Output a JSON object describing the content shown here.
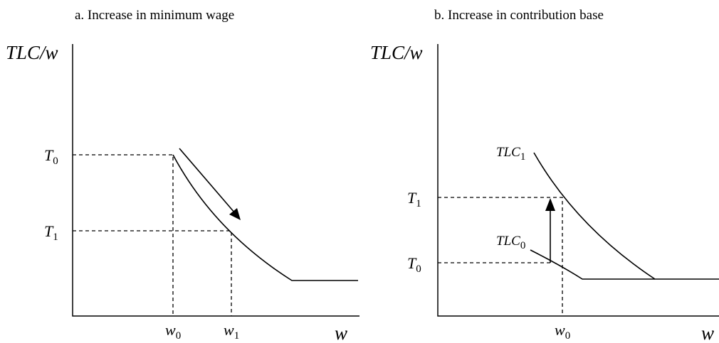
{
  "panels": [
    {
      "title": "a. Increase in minimum wage",
      "y_label": "TLC/w",
      "x_label": "w",
      "y_labels": [
        {
          "base": "T",
          "sub": "0"
        },
        {
          "base": "T",
          "sub": "1"
        }
      ],
      "x_labels": [
        {
          "base": "w",
          "sub": "0"
        },
        {
          "base": "w",
          "sub": "1"
        }
      ]
    },
    {
      "title": "b. Increase in contribution base",
      "y_label": "TLC/w",
      "x_label": "w",
      "y_labels": [
        {
          "base": "T",
          "sub": "1"
        },
        {
          "base": "T",
          "sub": "0"
        }
      ],
      "x_labels": [
        {
          "base": "w",
          "sub": "0"
        }
      ],
      "curve_labels": [
        {
          "base": "TLC",
          "sub": "1"
        },
        {
          "base": "TLC",
          "sub": "0"
        }
      ]
    }
  ]
}
